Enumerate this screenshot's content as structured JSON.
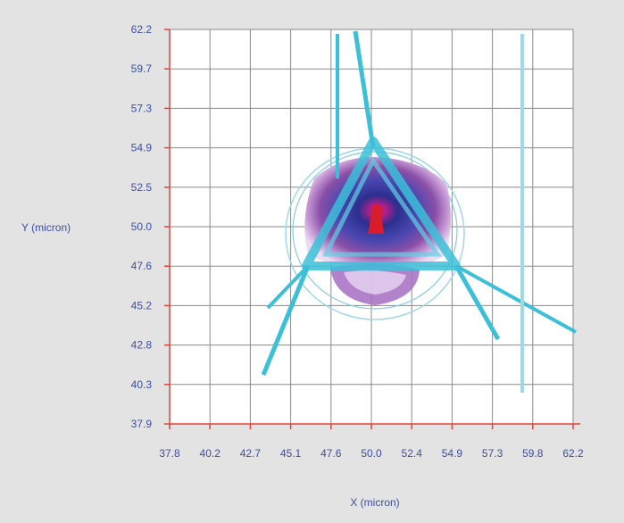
{
  "chart_data": {
    "type": "heatmap",
    "xlabel": "X (micron)",
    "ylabel": "Y (micron)",
    "x_ticks": [
      "37.8",
      "40.2",
      "42.7",
      "45.1",
      "47.6",
      "50.0",
      "52.4",
      "54.9",
      "57.3",
      "59.8",
      "62.2"
    ],
    "y_ticks": [
      "62.2",
      "59.7",
      "57.3",
      "54.9",
      "52.5",
      "50.0",
      "47.6",
      "45.2",
      "42.8",
      "40.3",
      "37.9"
    ],
    "xlim": [
      37.8,
      62.2
    ],
    "ylim": [
      37.9,
      62.2
    ],
    "grid": true,
    "feature": {
      "description_colors": [
        "#d91c2a",
        "#2b2f8f",
        "#5a4bb0",
        "#8a4fa6",
        "#c08ad0",
        "#3cc0d8"
      ],
      "peak": {
        "x": 50.0,
        "y": 50.8
      },
      "triangle_vertices": [
        [
          50.0,
          54.7
        ],
        [
          46.6,
          47.9
        ],
        [
          53.9,
          47.9
        ]
      ]
    },
    "colors": {
      "background": "#ffffff",
      "grid": "#8a8a8a",
      "axis_tick": "#e0433a",
      "label": "#3d4f9e",
      "cyan": "#3cc0d8",
      "peak": "#d91c2a",
      "core": "#2b2f8f",
      "mid": "#6a55b5",
      "outer": "#b57ccc"
    }
  }
}
